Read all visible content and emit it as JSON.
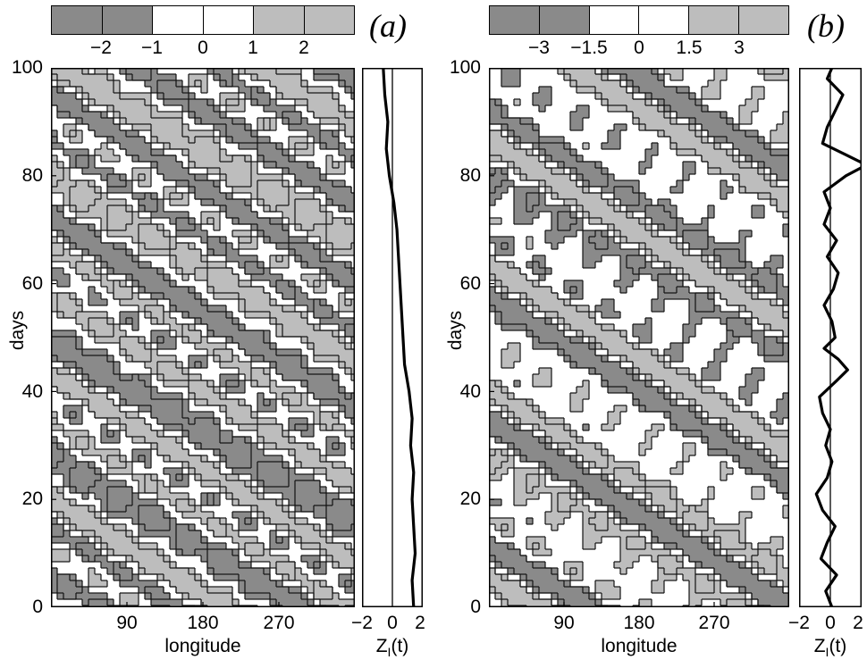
{
  "chart_data": [
    {
      "type": "heatmap",
      "panel_label": "(a)",
      "colorbar": {
        "colors": [
          "#8a8a8a",
          "#8a8a8a",
          "#ffffff",
          "#ffffff",
          "#bdbdbd",
          "#bdbdbd"
        ],
        "tick_labels": [
          "−2",
          "−1",
          "0",
          "1",
          "2"
        ]
      },
      "xlabel": "longitude",
      "ylabel": "days",
      "xlim": [
        0,
        360
      ],
      "ylim": [
        0,
        100
      ],
      "xticks": [
        "90",
        "180",
        "270"
      ],
      "yticks": [
        "0",
        "20",
        "40",
        "60",
        "80",
        "100"
      ],
      "side_plot": {
        "xlabel": "Z_I(t)",
        "xticks": [
          "−2",
          "0",
          "2"
        ],
        "xlim": [
          -2,
          2
        ],
        "series": {
          "days": [
            0,
            5,
            10,
            15,
            20,
            25,
            30,
            35,
            40,
            45,
            50,
            55,
            60,
            65,
            70,
            75,
            80,
            85,
            90,
            95,
            100
          ],
          "values": [
            1.4,
            1.3,
            1.5,
            1.4,
            1.3,
            1.4,
            1.2,
            1.3,
            1.1,
            0.8,
            0.7,
            0.6,
            0.5,
            0.4,
            0.3,
            0.1,
            -0.2,
            -0.4,
            -0.3,
            -0.5,
            -0.6
          ]
        }
      }
    },
    {
      "type": "heatmap",
      "panel_label": "(b)",
      "colorbar": {
        "colors": [
          "#8a8a8a",
          "#8a8a8a",
          "#ffffff",
          "#ffffff",
          "#bdbdbd",
          "#bdbdbd"
        ],
        "tick_labels": [
          "−3",
          "−1.5",
          "0",
          "1.5",
          "3"
        ]
      },
      "xlabel": "longitude",
      "ylabel": "days",
      "xlim": [
        0,
        360
      ],
      "ylim": [
        0,
        100
      ],
      "xticks": [
        "90",
        "180",
        "270"
      ],
      "yticks": [
        "0",
        "20",
        "40",
        "60",
        "80",
        "100"
      ],
      "side_plot": {
        "xlabel": "Z_I(t)",
        "xticks": [
          "−2",
          "0",
          "2"
        ],
        "xlim": [
          -2,
          2
        ],
        "series": {
          "days": [
            0,
            3,
            6,
            9,
            12,
            15,
            18,
            21,
            24,
            27,
            30,
            33,
            36,
            39,
            42,
            44,
            46,
            48,
            50,
            53,
            56,
            59,
            62,
            65,
            68,
            71,
            74,
            77,
            80,
            82,
            84,
            86,
            89,
            92,
            95,
            98,
            100
          ],
          "values": [
            0.1,
            -0.3,
            0.4,
            -0.6,
            -0.2,
            0.3,
            -0.5,
            -0.9,
            -0.2,
            0.1,
            -0.3,
            0.0,
            -0.5,
            -0.7,
            0.4,
            1.1,
            0.5,
            -0.4,
            0.3,
            0.1,
            -0.4,
            0.2,
            0.5,
            -0.2,
            0.4,
            -0.4,
            0.0,
            -0.4,
            1.0,
            2.3,
            0.9,
            -0.5,
            -0.2,
            0.3,
            0.8,
            -0.2,
            0.1
          ]
        }
      }
    }
  ]
}
